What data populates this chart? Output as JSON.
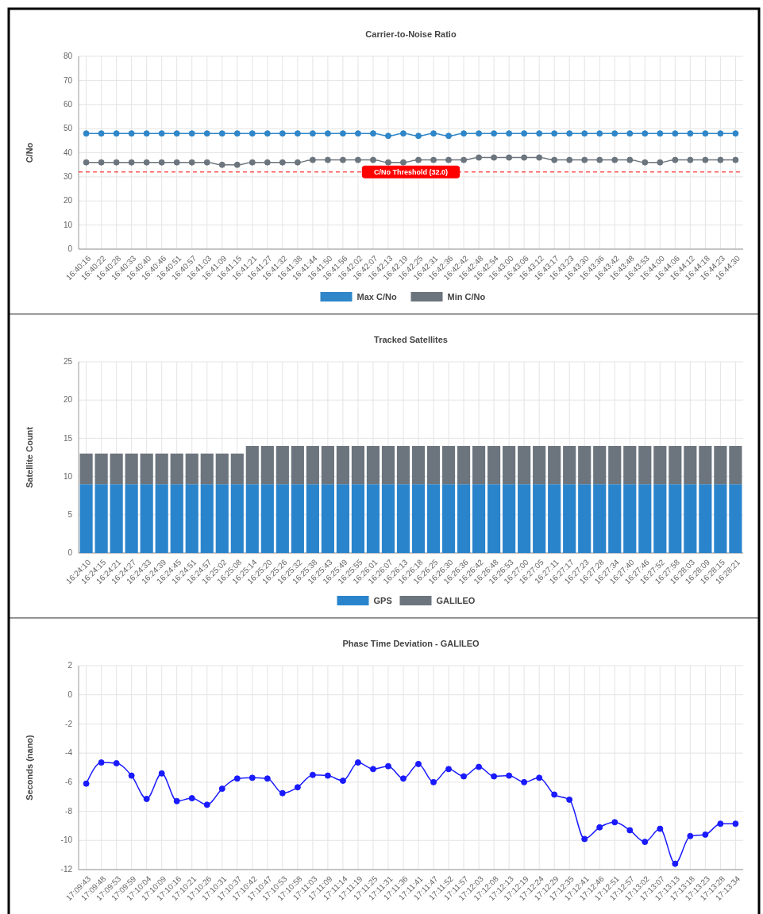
{
  "chart_data": [
    {
      "type": "line",
      "title": "Carrier-to-Noise Ratio",
      "ylabel": "C/No",
      "categories": [
        "16:40:16",
        "16:40:22",
        "16:40:28",
        "16:40:33",
        "16:40:40",
        "16:40:46",
        "16:40:51",
        "16:40:57",
        "16:41:03",
        "16:41:09",
        "16:41:15",
        "16:41:21",
        "16:41:27",
        "16:41:32",
        "16:41:38",
        "16:41:44",
        "16:41:50",
        "16:41:56",
        "16:42:02",
        "16:42:07",
        "16:42:13",
        "16:42:19",
        "16:42:25",
        "16:42:31",
        "16:42:36",
        "16:42:42",
        "16:42:48",
        "16:42:54",
        "16:43:00",
        "16:43:06",
        "16:43:12",
        "16:43:17",
        "16:43:23",
        "16:43:30",
        "16:43:36",
        "16:43:42",
        "16:43:48",
        "16:43:53",
        "16:44:00",
        "16:44:06",
        "16:44:12",
        "16:44:18",
        "16:44:23",
        "16:44:30"
      ],
      "series": [
        {
          "name": "Max C/No",
          "color": "#2f86c8",
          "values": [
            48,
            48,
            48,
            48,
            48,
            48,
            48,
            48,
            48,
            48,
            48,
            48,
            48,
            48,
            48,
            48,
            48,
            48,
            48,
            48,
            47,
            48,
            47,
            48,
            47,
            48,
            48,
            48,
            48,
            48,
            48,
            48,
            48,
            48,
            48,
            48,
            48,
            48,
            48,
            48,
            48,
            48,
            48,
            48
          ]
        },
        {
          "name": "Min C/No",
          "color": "#6c757d",
          "values": [
            36,
            36,
            36,
            36,
            36,
            36,
            36,
            36,
            36,
            35,
            35,
            36,
            36,
            36,
            36,
            37,
            37,
            37,
            37,
            37,
            36,
            36,
            37,
            37,
            37,
            37,
            38,
            38,
            38,
            38,
            38,
            37,
            37,
            37,
            37,
            37,
            37,
            36,
            36,
            37,
            37,
            37,
            37,
            37
          ]
        }
      ],
      "ylim": [
        0,
        80
      ],
      "yticks": [
        0,
        10,
        20,
        30,
        40,
        50,
        60,
        70,
        80
      ],
      "grid": true,
      "legend": "bottom",
      "marker": "circle",
      "ref_lines": [
        {
          "axis": "y",
          "value": 32,
          "label": "C/No Threshold (32.0)",
          "color": "#ff0000",
          "line_style": "dashed"
        }
      ]
    },
    {
      "type": "bar",
      "title": "Tracked Satellites",
      "ylabel": "Satellite Count",
      "stacked": true,
      "categories": [
        "16:24:10",
        "16:24:15",
        "16:24:21",
        "16:24:27",
        "16:24:33",
        "16:24:39",
        "16:24:45",
        "16:24:51",
        "16:24:57",
        "16:25:02",
        "16:25:08",
        "16:25:14",
        "16:25:20",
        "16:25:26",
        "16:25:32",
        "16:25:38",
        "16:25:43",
        "16:25:49",
        "16:25:55",
        "16:26:01",
        "16:26:07",
        "16:26:13",
        "16:26:18",
        "16:26:25",
        "16:26:30",
        "16:26:36",
        "16:26:42",
        "16:26:48",
        "16:26:53",
        "16:27:00",
        "16:27:05",
        "16:27:11",
        "16:27:17",
        "16:27:23",
        "16:27:28",
        "16:27:34",
        "16:27:40",
        "16:27:46",
        "16:27:52",
        "16:27:58",
        "16:28:03",
        "16:28:09",
        "16:28:15",
        "16:28:21"
      ],
      "series": [
        {
          "name": "GPS",
          "color": "#2a84cc",
          "values": [
            9,
            9,
            9,
            9,
            9,
            9,
            9,
            9,
            9,
            9,
            9,
            9,
            9,
            9,
            9,
            9,
            9,
            9,
            9,
            9,
            9,
            9,
            9,
            9,
            9,
            9,
            9,
            9,
            9,
            9,
            9,
            9,
            9,
            9,
            9,
            9,
            9,
            9,
            9,
            9,
            9,
            9,
            9,
            9
          ]
        },
        {
          "name": "GALILEO",
          "color": "#6c757d",
          "values": [
            4,
            4,
            4,
            4,
            4,
            4,
            4,
            4,
            4,
            4,
            4,
            5,
            5,
            5,
            5,
            5,
            5,
            5,
            5,
            5,
            5,
            5,
            5,
            5,
            5,
            5,
            5,
            5,
            5,
            5,
            5,
            5,
            5,
            5,
            5,
            5,
            5,
            5,
            5,
            5,
            5,
            5,
            5,
            5
          ]
        }
      ],
      "ylim": [
        0,
        25
      ],
      "yticks": [
        0,
        5,
        10,
        15,
        20,
        25
      ],
      "grid": true,
      "legend": "bottom"
    },
    {
      "type": "line",
      "title": "Phase Time Deviation - GALILEO",
      "ylabel": "Seconds (nano)",
      "categories": [
        "17:09:43",
        "17:09:48",
        "17:09:53",
        "17:09:59",
        "17:10:04",
        "17:10:09",
        "17:10:16",
        "17:10:21",
        "17:10:26",
        "17:10:31",
        "17:10:37",
        "17:10:42",
        "17:10:47",
        "17:10:53",
        "17:10:58",
        "17:11:03",
        "17:11:09",
        "17:11:14",
        "17:11:19",
        "17:11:25",
        "17:11:31",
        "17:11:36",
        "17:11:41",
        "17:11:47",
        "17:11:52",
        "17:11:57",
        "17:12:03",
        "17:12:08",
        "17:12:13",
        "17:12:19",
        "17:12:24",
        "17:12:29",
        "17:12:35",
        "17:12:41",
        "17:12:46",
        "17:12:51",
        "17:12:57",
        "17:13:02",
        "17:13:07",
        "17:13:13",
        "17:13:18",
        "17:13:23",
        "17:13:28",
        "17:13:34"
      ],
      "series": [
        {
          "color": "#1a1aff",
          "values": [
            -6.1,
            -4.65,
            -4.7,
            -5.55,
            -7.15,
            -5.4,
            -7.3,
            -7.1,
            -7.55,
            -6.45,
            -5.75,
            -5.7,
            -5.75,
            -6.75,
            -6.35,
            -5.5,
            -5.55,
            -5.9,
            -4.65,
            -5.1,
            -4.9,
            -5.75,
            -4.75,
            -6.0,
            -5.1,
            -5.6,
            -4.95,
            -5.6,
            -5.55,
            -6.0,
            -5.7,
            -6.85,
            -7.2,
            -9.9,
            -9.1,
            -8.75,
            -9.3,
            -10.1,
            -9.2,
            -11.6,
            -9.7,
            -9.6,
            -8.85,
            -8.85
          ]
        }
      ],
      "ylim": [
        -12,
        2
      ],
      "yticks": [
        -12,
        -10,
        -8,
        -6,
        -4,
        -2,
        0,
        2
      ],
      "grid": true,
      "marker": "circle"
    }
  ]
}
